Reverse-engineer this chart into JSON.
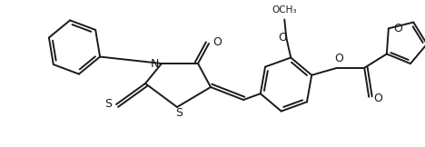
{
  "bg_color": "#ffffff",
  "line_color": "#1a1a1a",
  "lw": 1.4,
  "fig_width": 4.68,
  "fig_height": 1.62,
  "dpi": 100,
  "xlim": [
    0,
    468
  ],
  "ylim": [
    0,
    162
  ]
}
